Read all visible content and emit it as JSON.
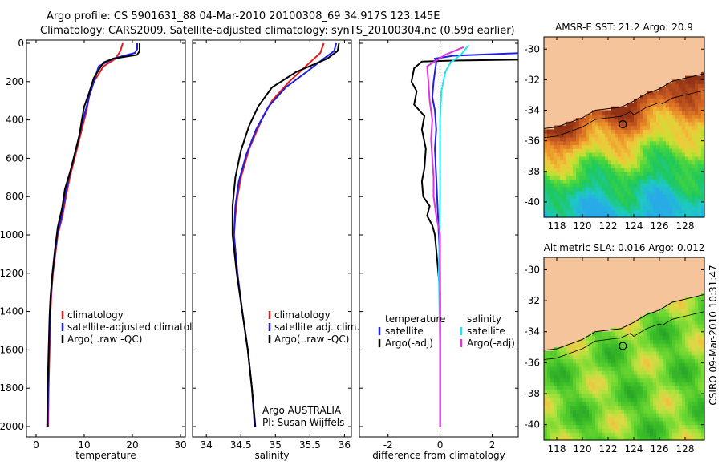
{
  "header": {
    "line1": "Argo profile: CS 5901631_88 04-Mar-2010 20100308_69 34.917S 123.145E",
    "line2": "Climatology: CARS2009. Satellite-adjusted climatology: synTS_20100304.nc (0.59d earlier)"
  },
  "side_label": "CSIRO 09-Mar-2010 10:31:47",
  "colors": {
    "red": "#e41a1c",
    "blue": "#1f1fdd",
    "black": "#000000",
    "cyan": "#22e6ee",
    "magenta": "#e033e0",
    "land": "#f6c49a",
    "coast": "#000000"
  },
  "chart_data": [
    {
      "type": "line",
      "xlabel": "temperature",
      "ylim": [
        2050,
        0
      ],
      "xlim": [
        -2,
        31
      ],
      "xticks": [
        "0",
        "10",
        "20",
        "30"
      ],
      "xtick_values": [
        0,
        10,
        20,
        30
      ],
      "yticks": [
        "0",
        "200",
        "400",
        "600",
        "800",
        "1000",
        "1200",
        "1400",
        "1600",
        "1800",
        "2000"
      ],
      "ytick_values": [
        0,
        200,
        400,
        600,
        800,
        1000,
        1200,
        1400,
        1600,
        1800,
        2000
      ],
      "legend": [
        "climatology",
        "satellite-adjusted climatology",
        "Argo(..raw -QC)"
      ],
      "series": [
        {
          "name": "climatology",
          "color": "red",
          "points": [
            [
              18,
              0
            ],
            [
              17.5,
              40
            ],
            [
              16.5,
              80
            ],
            [
              14,
              120
            ],
            [
              12,
              200
            ],
            [
              11,
              280
            ],
            [
              10.5,
              350
            ],
            [
              9.8,
              420
            ],
            [
              9,
              500
            ],
            [
              8,
              600
            ],
            [
              7,
              700
            ],
            [
              6.2,
              800
            ],
            [
              5.5,
              900
            ],
            [
              4.5,
              1000
            ],
            [
              4,
              1100
            ],
            [
              3.5,
              1200
            ],
            [
              3.2,
              1300
            ],
            [
              3,
              1400
            ],
            [
              2.8,
              1600
            ],
            [
              2.6,
              1800
            ],
            [
              2.5,
              2000
            ]
          ]
        },
        {
          "name": "satellite-adjusted climatology",
          "color": "blue",
          "points": [
            [
              21,
              0
            ],
            [
              21,
              30
            ],
            [
              20.5,
              50
            ],
            [
              16,
              80
            ],
            [
              13,
              120
            ],
            [
              12,
              200
            ],
            [
              11,
              280
            ],
            [
              10.3,
              350
            ],
            [
              9.5,
              420
            ],
            [
              8.8,
              500
            ],
            [
              7.8,
              600
            ],
            [
              6.8,
              700
            ],
            [
              6,
              800
            ],
            [
              5.3,
              900
            ],
            [
              4.4,
              1000
            ],
            [
              3.9,
              1100
            ],
            [
              3.4,
              1200
            ],
            [
              3.1,
              1300
            ],
            [
              2.9,
              1400
            ],
            [
              2.7,
              1600
            ],
            [
              2.5,
              1800
            ],
            [
              2.4,
              2000
            ]
          ]
        },
        {
          "name": "Argo(..raw -QC)",
          "color": "black",
          "points": [
            [
              21.5,
              0
            ],
            [
              21.5,
              40
            ],
            [
              21,
              60
            ],
            [
              16,
              80
            ],
            [
              14,
              100
            ],
            [
              12,
              180
            ],
            [
              11,
              260
            ],
            [
              10,
              330
            ],
            [
              9.5,
              400
            ],
            [
              9,
              480
            ],
            [
              8.2,
              560
            ],
            [
              7.2,
              660
            ],
            [
              6,
              760
            ],
            [
              5.4,
              860
            ],
            [
              4.5,
              960
            ],
            [
              3.9,
              1080
            ],
            [
              3.4,
              1200
            ],
            [
              3,
              1320
            ],
            [
              2.8,
              1420
            ],
            [
              2.6,
              1600
            ],
            [
              2.4,
              1800
            ],
            [
              2.3,
              2000
            ]
          ]
        }
      ]
    },
    {
      "type": "line",
      "xlabel": "salinity",
      "ylim": [
        2050,
        0
      ],
      "xlim": [
        33.8,
        36.1
      ],
      "xticks": [
        "34",
        "34.5",
        "35",
        "35.5",
        "36"
      ],
      "xtick_values": [
        34,
        34.5,
        35,
        35.5,
        36
      ],
      "legend": [
        "climatology",
        "satellite adj. clim.",
        "Argo(..raw -QC)"
      ],
      "annotation": [
        "Argo AUSTRALIA",
        "PI: Susan Wijffels"
      ],
      "series": [
        {
          "name": "climatology",
          "color": "red",
          "points": [
            [
              35.7,
              0
            ],
            [
              35.65,
              50
            ],
            [
              35.5,
              100
            ],
            [
              35.2,
              200
            ],
            [
              34.95,
              300
            ],
            [
              34.8,
              400
            ],
            [
              34.62,
              550
            ],
            [
              34.5,
              700
            ],
            [
              34.45,
              800
            ],
            [
              34.42,
              900
            ],
            [
              34.4,
              1000
            ],
            [
              34.45,
              1200
            ],
            [
              34.52,
              1400
            ],
            [
              34.6,
              1600
            ],
            [
              34.66,
              1800
            ],
            [
              34.7,
              2000
            ]
          ]
        },
        {
          "name": "satellite adj. clim.",
          "color": "blue",
          "points": [
            [
              35.88,
              0
            ],
            [
              35.85,
              40
            ],
            [
              35.7,
              80
            ],
            [
              35.45,
              150
            ],
            [
              35.15,
              230
            ],
            [
              34.9,
              330
            ],
            [
              34.72,
              450
            ],
            [
              34.58,
              580
            ],
            [
              34.47,
              720
            ],
            [
              34.42,
              850
            ],
            [
              34.4,
              1000
            ],
            [
              34.45,
              1200
            ],
            [
              34.52,
              1400
            ],
            [
              34.6,
              1600
            ],
            [
              34.66,
              1800
            ],
            [
              34.7,
              2000
            ]
          ]
        },
        {
          "name": "Argo(..raw -QC)",
          "color": "black",
          "points": [
            [
              35.92,
              0
            ],
            [
              35.9,
              40
            ],
            [
              35.75,
              80
            ],
            [
              35.3,
              150
            ],
            [
              34.95,
              230
            ],
            [
              34.75,
              330
            ],
            [
              34.62,
              430
            ],
            [
              34.5,
              560
            ],
            [
              34.42,
              700
            ],
            [
              34.38,
              850
            ],
            [
              34.38,
              1000
            ],
            [
              34.44,
              1200
            ],
            [
              34.52,
              1400
            ],
            [
              34.6,
              1600
            ],
            [
              34.66,
              1800
            ],
            [
              34.71,
              2000
            ]
          ]
        }
      ]
    },
    {
      "type": "line",
      "xlabel": "difference from climatology",
      "ylim": [
        2050,
        0
      ],
      "xlim": [
        -3.1,
        3
      ],
      "xticks": [
        "-2",
        "0",
        "2"
      ],
      "xtick_values": [
        -2,
        0,
        2
      ],
      "legend_left": [
        "temperature",
        "satellite",
        "Argo(-adj)"
      ],
      "legend_right": [
        "salinity",
        "satellite",
        "Argo(-adj)"
      ],
      "series": [
        {
          "name": "satellite",
          "group": "temperature",
          "color": "blue",
          "points": [
            [
              3.2,
              50
            ],
            [
              0.5,
              65
            ],
            [
              -0.2,
              80
            ],
            [
              -0.15,
              100
            ],
            [
              -0.2,
              150
            ],
            [
              -0.25,
              200
            ],
            [
              -0.3,
              280
            ],
            [
              -0.2,
              350
            ],
            [
              -0.15,
              450
            ],
            [
              -0.2,
              550
            ],
            [
              -0.15,
              700
            ],
            [
              -0.1,
              850
            ],
            [
              -0.05,
              1000
            ],
            [
              0,
              1200
            ],
            [
              0,
              1500
            ],
            [
              0,
              2000
            ]
          ]
        },
        {
          "name": "Argo(-adj)",
          "group": "temperature",
          "color": "black",
          "points": [
            [
              3.2,
              85
            ],
            [
              0.5,
              90
            ],
            [
              -0.7,
              95
            ],
            [
              -1,
              130
            ],
            [
              -1.1,
              200
            ],
            [
              -0.9,
              250
            ],
            [
              -1,
              320
            ],
            [
              -0.6,
              380
            ],
            [
              -0.7,
              450
            ],
            [
              -0.55,
              550
            ],
            [
              -0.6,
              650
            ],
            [
              -0.7,
              720
            ],
            [
              -0.65,
              800
            ],
            [
              -0.4,
              850
            ],
            [
              -0.5,
              900
            ],
            [
              -0.3,
              950
            ],
            [
              -0.2,
              1000
            ],
            [
              -0.1,
              1150
            ],
            [
              0,
              1300
            ],
            [
              0,
              2000
            ]
          ]
        },
        {
          "name": "satellite",
          "group": "salinity",
          "color": "cyan",
          "points": [
            [
              1.1,
              10
            ],
            [
              0.8,
              60
            ],
            [
              0.4,
              100
            ],
            [
              0.2,
              150
            ],
            [
              0.05,
              250
            ],
            [
              0,
              400
            ],
            [
              0,
              800
            ],
            [
              -0.05,
              1200
            ],
            [
              0,
              1600
            ],
            [
              0,
              2000
            ]
          ]
        },
        {
          "name": "Argo(-adj)",
          "group": "salinity",
          "color": "magenta",
          "points": [
            [
              0.9,
              20
            ],
            [
              0.2,
              60
            ],
            [
              -0.5,
              120
            ],
            [
              -0.45,
              200
            ],
            [
              -0.4,
              300
            ],
            [
              -0.3,
              400
            ],
            [
              -0.35,
              500
            ],
            [
              -0.3,
              600
            ],
            [
              -0.25,
              700
            ],
            [
              -0.25,
              800
            ],
            [
              -0.15,
              900
            ],
            [
              0,
              1000
            ],
            [
              0,
              2000
            ]
          ]
        }
      ]
    },
    {
      "type": "heatmap",
      "title": "AMSR-E SST: 21.2 Argo: 20.9",
      "xticks": [
        "118",
        "120",
        "122",
        "124",
        "126",
        "128"
      ],
      "xtick_values": [
        118,
        120,
        122,
        124,
        126,
        128
      ],
      "yticks": [
        "-30",
        "-32",
        "-34",
        "-36",
        "-38",
        "-40"
      ],
      "ytick_values": [
        -30,
        -32,
        -34,
        -36,
        -38,
        -40
      ],
      "lon_range": [
        117,
        129.5
      ],
      "lat_range": [
        -41,
        -29.2
      ],
      "marker": {
        "lon": 123.145,
        "lat": -34.917
      }
    },
    {
      "type": "heatmap",
      "title": "Altimetric SLA: 0.016 Argo: 0.012",
      "xticks": [
        "118",
        "120",
        "122",
        "124",
        "126",
        "128"
      ],
      "xtick_values": [
        118,
        120,
        122,
        124,
        126,
        128
      ],
      "yticks": [
        "-30",
        "-32",
        "-34",
        "-36",
        "-38",
        "-40"
      ],
      "ytick_values": [
        -30,
        -32,
        -34,
        -36,
        -38,
        -40
      ],
      "lon_range": [
        117,
        129.5
      ],
      "lat_range": [
        -41,
        -29.2
      ],
      "marker": {
        "lon": 123.145,
        "lat": -34.917
      }
    }
  ]
}
